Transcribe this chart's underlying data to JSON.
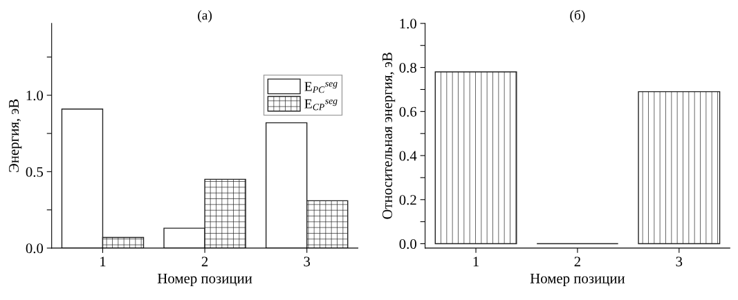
{
  "chart_data": [
    {
      "type": "bar",
      "title": "(а)",
      "xlabel": "Номер позиции",
      "ylabel": "Энергия, эВ",
      "categories": [
        "1",
        "2",
        "3"
      ],
      "series": [
        {
          "name": "E$_{PC}$$^{seg}$",
          "color": "#ffffff",
          "values": [
            0.91,
            0.13,
            0.82
          ]
        },
        {
          "name": "E$_{CP}$$^{seg}$",
          "color": "#222222",
          "values": [
            0.07,
            0.45,
            0.31
          ]
        }
      ],
      "ylim": [
        0,
        1.47
      ],
      "yticks": [
        {
          "value": 0,
          "label": "0.0"
        },
        {
          "value": 0.25,
          "label": null
        },
        {
          "value": 0.5,
          "label": "0.5"
        },
        {
          "value": 0.75,
          "label": null
        },
        {
          "value": 1.0,
          "label": "1.0"
        },
        {
          "value": 1.25,
          "label": null
        }
      ],
      "legend": "top right",
      "grid": false
    },
    {
      "type": "bar",
      "title": "(б)",
      "xlabel": "Номер позиции",
      "ylabel": "Относительная энергия, эВ",
      "categories": [
        "1",
        "2",
        "3"
      ],
      "series": [
        {
          "color": "#222222",
          "values": [
            0.78,
            0.0,
            0.69
          ]
        }
      ],
      "ylim": [
        -0.02,
        1.0
      ],
      "yticks": [
        {
          "value": 0,
          "label": "0.0"
        },
        {
          "value": 0.1,
          "label": null
        },
        {
          "value": 0.2,
          "label": "0.2"
        },
        {
          "value": 0.3,
          "label": null
        },
        {
          "value": 0.4,
          "label": "0.4"
        },
        {
          "value": 0.5,
          "label": null
        },
        {
          "value": 0.6,
          "label": "0.6"
        },
        {
          "value": 0.7,
          "label": null
        },
        {
          "value": 0.8,
          "label": "0.8"
        },
        {
          "value": 0.9,
          "label": null
        },
        {
          "value": 1.0,
          "label": "1.0"
        }
      ],
      "legend": false,
      "grid": false
    }
  ]
}
